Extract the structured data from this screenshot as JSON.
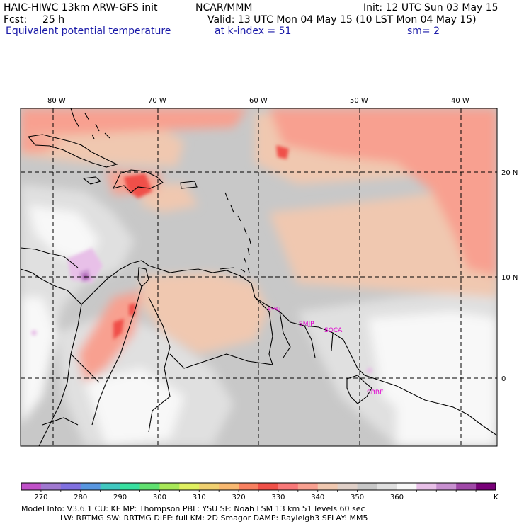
{
  "header": {
    "model": "HAIC-HIWC 13km ARW-GFS init",
    "org": "NCAR/MMM",
    "init": "Init: 12 UTC Sun 03 May 15",
    "fcst_label": "Fcst:",
    "fcst_value": "25 h",
    "valid": "Valid: 13 UTC Mon 04 May 15 (10 LST Mon 04 May 15)",
    "field": "Equivalent potential temperature",
    "level": "at k-index =  51",
    "smooth": "sm= 2"
  },
  "map": {
    "lon_labels": [
      "80 W",
      "70 W",
      "60 W",
      "50 W",
      "40 W"
    ],
    "lat_labels": [
      "20 N",
      "10 N",
      "0"
    ],
    "stations": [
      "SYSL",
      "SMJP",
      "SOCA",
      "SBBE"
    ]
  },
  "colorbar": {
    "colors": [
      "#c050c8",
      "#a078d0",
      "#8070e0",
      "#5896e0",
      "#40c8c0",
      "#38e0a0",
      "#60e070",
      "#a8e858",
      "#e0f060",
      "#f0d070",
      "#f8b870",
      "#f88060",
      "#f05048",
      "#f87878",
      "#f8a090",
      "#f0c8b0",
      "#e0d0c8",
      "#c8c8c8",
      "#e0e0e0",
      "#f8f8f8",
      "#e8c0e8",
      "#c890d0",
      "#a048a8",
      "#780078"
    ],
    "labels": [
      "270",
      "280",
      "290",
      "300",
      "310",
      "320",
      "330",
      "340",
      "350",
      "360"
    ],
    "unit": "K"
  },
  "footer": {
    "line1": "Model Info: V3.6.1     CU: KF      MP: Thompson     PBL: YSU      SF: Noah LSM      13 km    51 levels   60 sec",
    "line2": "LW: RRTMG     SW: RRTMG   DIFF: full    KM: 2D Smagor DAMP: Rayleigh3   SFLAY: MM5"
  }
}
